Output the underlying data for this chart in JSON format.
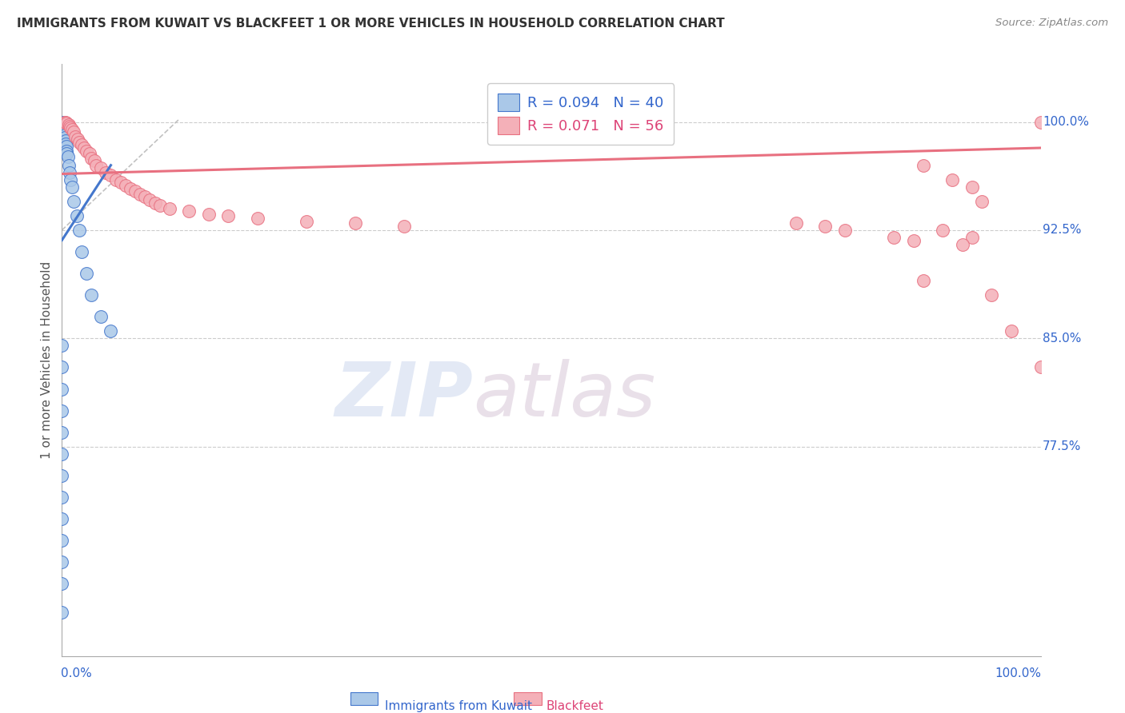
{
  "title": "IMMIGRANTS FROM KUWAIT VS BLACKFEET 1 OR MORE VEHICLES IN HOUSEHOLD CORRELATION CHART",
  "source": "Source: ZipAtlas.com",
  "ylabel": "1 or more Vehicles in Household",
  "ytick_labels_right": {
    "1.0": "100.0%",
    "0.925": "92.5%",
    "0.85": "85.0%",
    "0.775": "77.5%"
  },
  "xlim": [
    0.0,
    1.0
  ],
  "ylim": [
    0.63,
    1.04
  ],
  "legend_label_blue": "R = 0.094   N = 40",
  "legend_label_pink": "R = 0.071   N = 56",
  "blue_scatter_x": [
    0.001,
    0.001,
    0.001,
    0.002,
    0.002,
    0.002,
    0.002,
    0.003,
    0.003,
    0.004,
    0.004,
    0.005,
    0.005,
    0.005,
    0.006,
    0.007,
    0.008,
    0.009,
    0.01,
    0.012,
    0.015,
    0.018,
    0.02,
    0.025,
    0.03,
    0.04,
    0.05,
    0.0,
    0.0,
    0.0,
    0.0,
    0.0,
    0.0,
    0.0,
    0.0,
    0.0,
    0.0,
    0.0,
    0.0,
    0.0
  ],
  "blue_scatter_y": [
    1.0,
    0.999,
    0.998,
    0.997,
    0.996,
    0.995,
    0.993,
    0.991,
    0.989,
    0.987,
    0.985,
    0.983,
    0.98,
    0.978,
    0.976,
    0.97,
    0.965,
    0.96,
    0.955,
    0.945,
    0.935,
    0.925,
    0.91,
    0.895,
    0.88,
    0.865,
    0.855,
    0.845,
    0.83,
    0.815,
    0.8,
    0.785,
    0.77,
    0.755,
    0.74,
    0.725,
    0.71,
    0.695,
    0.68,
    0.66
  ],
  "pink_scatter_x": [
    0.003,
    0.004,
    0.005,
    0.007,
    0.008,
    0.009,
    0.01,
    0.012,
    0.014,
    0.016,
    0.018,
    0.02,
    0.023,
    0.025,
    0.028,
    0.03,
    0.033,
    0.035,
    0.04,
    0.045,
    0.05,
    0.055,
    0.06,
    0.065,
    0.07,
    0.075,
    0.08,
    0.085,
    0.09,
    0.095,
    0.1,
    0.11,
    0.13,
    0.15,
    0.17,
    0.2,
    0.25,
    0.3,
    0.35,
    0.75,
    0.78,
    0.8,
    0.85,
    0.87,
    0.9,
    0.93,
    0.95,
    0.97,
    1.0,
    1.0,
    0.88,
    0.91,
    0.93,
    0.94,
    0.92,
    0.88
  ],
  "pink_scatter_y": [
    1.0,
    1.0,
    0.999,
    0.998,
    0.997,
    0.996,
    0.995,
    0.993,
    0.99,
    0.988,
    0.986,
    0.984,
    0.982,
    0.98,
    0.978,
    0.975,
    0.973,
    0.97,
    0.968,
    0.965,
    0.963,
    0.96,
    0.958,
    0.956,
    0.954,
    0.952,
    0.95,
    0.948,
    0.946,
    0.944,
    0.942,
    0.94,
    0.938,
    0.936,
    0.935,
    0.933,
    0.931,
    0.93,
    0.928,
    0.93,
    0.928,
    0.925,
    0.92,
    0.918,
    0.925,
    0.92,
    0.88,
    0.855,
    0.83,
    1.0,
    0.97,
    0.96,
    0.955,
    0.945,
    0.915,
    0.89
  ],
  "blue_trend_x": [
    0.0,
    0.05
  ],
  "blue_trend_y": [
    0.918,
    0.97
  ],
  "pink_trend_x": [
    0.0,
    1.0
  ],
  "pink_trend_y": [
    0.964,
    0.982
  ],
  "diag_line_x": [
    0.0,
    0.12
  ],
  "diag_line_y": [
    0.925,
    1.002
  ],
  "grid_color": "#cccccc",
  "blue_fill": "#aac8e8",
  "pink_fill": "#f4b0b8",
  "trend_blue": "#4477cc",
  "trend_pink": "#e87080",
  "diag_color": "#bbbbbb",
  "watermark_zip": "ZIP",
  "watermark_atlas": "atlas",
  "background_color": "#ffffff",
  "blue_legend_color": "#3366cc",
  "pink_legend_color": "#dd4477"
}
